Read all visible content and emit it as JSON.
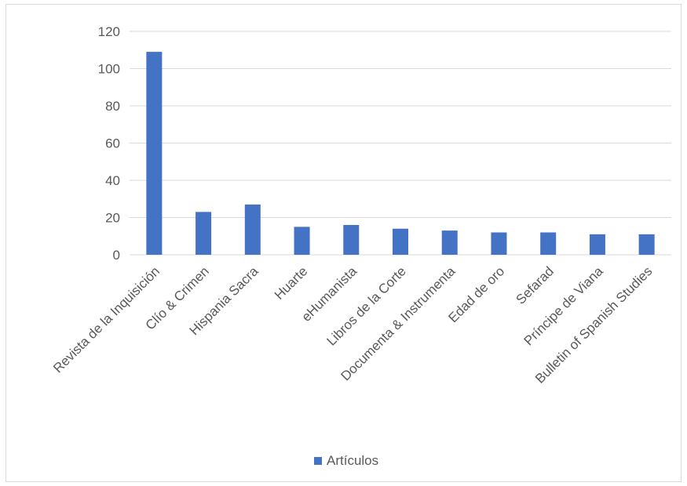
{
  "chart_data": {
    "type": "bar",
    "categories": [
      "Revista de la Inquisición",
      "Clío & Crimen",
      "Hispania Sacra",
      "Huarte",
      "eHumanista",
      "Libros de la Corte",
      "Documenta & Instrumenta",
      "Edad de oro",
      "Sefarad",
      "Príncipe de Viana",
      "Bulletin of Spanish Studies"
    ],
    "series": [
      {
        "name": "Artículos",
        "values": [
          109,
          23,
          27,
          15,
          16,
          14,
          13,
          12,
          12,
          11,
          11
        ]
      }
    ],
    "title": "",
    "xlabel": "",
    "ylabel": "",
    "ylim": [
      0,
      120
    ],
    "yticks": [
      "0",
      "20",
      "40",
      "60",
      "80",
      "100",
      "120"
    ],
    "grid": true,
    "legend_position": "bottom",
    "bar_color": "#4472c4",
    "grid_color": "#d9d9d9"
  }
}
